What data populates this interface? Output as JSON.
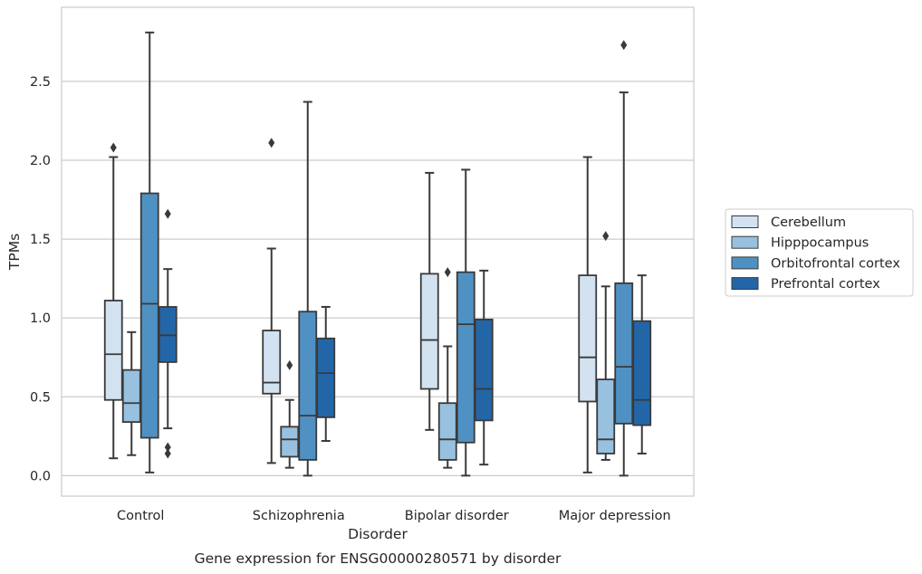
{
  "chart_data": {
    "type": "boxplot",
    "title": "",
    "caption": "Gene expression for ENSG00000280571 by disorder",
    "xlabel": "Disorder",
    "ylabel": "TPMs",
    "ylim": [
      -0.13,
      2.97
    ],
    "yticks": [
      0.0,
      0.5,
      1.0,
      1.5,
      2.0,
      2.5
    ],
    "ytick_labels": [
      "0.0",
      "0.5",
      "1.0",
      "1.5",
      "2.0",
      "2.5"
    ],
    "grid": "horizontal",
    "legend_position": "right",
    "categories": [
      "Control",
      "Schizophrenia",
      "Bipolar disorder",
      "Major depression"
    ],
    "series": [
      {
        "name": "Cerebellum",
        "color": "#d2e2f1",
        "boxes": [
          {
            "whislo": 0.11,
            "q1": 0.48,
            "med": 0.77,
            "q3": 1.11,
            "whishi": 2.02,
            "fliers": [
              2.08
            ]
          },
          {
            "whislo": 0.08,
            "q1": 0.52,
            "med": 0.59,
            "q3": 0.92,
            "whishi": 1.44,
            "fliers": [
              2.11
            ]
          },
          {
            "whislo": 0.29,
            "q1": 0.55,
            "med": 0.86,
            "q3": 1.28,
            "whishi": 1.92,
            "fliers": []
          },
          {
            "whislo": 0.02,
            "q1": 0.47,
            "med": 0.75,
            "q3": 1.27,
            "whishi": 2.02,
            "fliers": []
          }
        ]
      },
      {
        "name": "Hipppocampus",
        "color": "#97c1de",
        "boxes": [
          {
            "whislo": 0.13,
            "q1": 0.34,
            "med": 0.46,
            "q3": 0.67,
            "whishi": 0.91,
            "fliers": []
          },
          {
            "whislo": 0.05,
            "q1": 0.12,
            "med": 0.23,
            "q3": 0.31,
            "whishi": 0.48,
            "fliers": [
              0.7
            ]
          },
          {
            "whislo": 0.05,
            "q1": 0.1,
            "med": 0.23,
            "q3": 0.46,
            "whishi": 0.82,
            "fliers": [
              1.29
            ]
          },
          {
            "whislo": 0.1,
            "q1": 0.14,
            "med": 0.23,
            "q3": 0.61,
            "whishi": 1.2,
            "fliers": [
              1.52
            ]
          }
        ]
      },
      {
        "name": "Orbitofrontal cortex",
        "color": "#4f91c3",
        "boxes": [
          {
            "whislo": 0.02,
            "q1": 0.24,
            "med": 1.09,
            "q3": 1.79,
            "whishi": 2.81,
            "fliers": []
          },
          {
            "whislo": 0.0,
            "q1": 0.1,
            "med": 0.38,
            "q3": 1.04,
            "whishi": 2.37,
            "fliers": []
          },
          {
            "whislo": 0.0,
            "q1": 0.21,
            "med": 0.96,
            "q3": 1.29,
            "whishi": 1.94,
            "fliers": []
          },
          {
            "whislo": 0.0,
            "q1": 0.33,
            "med": 0.69,
            "q3": 1.22,
            "whishi": 2.43,
            "fliers": [
              2.73
            ]
          }
        ]
      },
      {
        "name": "Prefrontal cortex",
        "color": "#2366a8",
        "boxes": [
          {
            "whislo": 0.3,
            "q1": 0.72,
            "med": 0.89,
            "q3": 1.07,
            "whishi": 1.31,
            "fliers": [
              1.66,
              0.18,
              0.14
            ]
          },
          {
            "whislo": 0.22,
            "q1": 0.37,
            "med": 0.65,
            "q3": 0.87,
            "whishi": 1.07,
            "fliers": []
          },
          {
            "whislo": 0.07,
            "q1": 0.35,
            "med": 0.55,
            "q3": 0.99,
            "whishi": 1.3,
            "fliers": []
          },
          {
            "whislo": 0.14,
            "q1": 0.32,
            "med": 0.48,
            "q3": 0.98,
            "whishi": 1.27,
            "fliers": []
          }
        ]
      }
    ]
  }
}
